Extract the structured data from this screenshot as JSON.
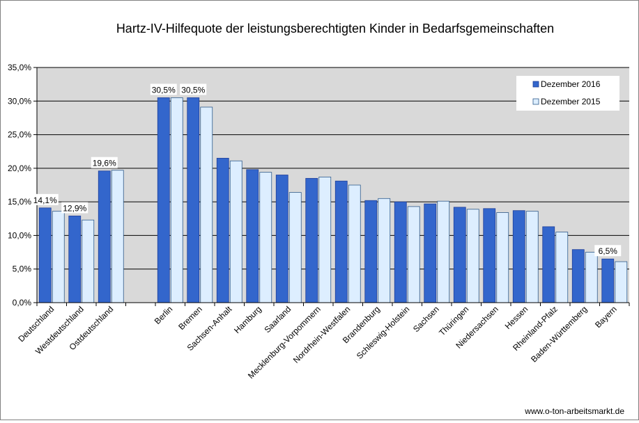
{
  "chart_data": {
    "type": "bar",
    "title": "Hartz-IV-Hilfequote der leistungsberechtigten Kinder in Bedarfsgemeinschaften",
    "xlabel": "",
    "ylabel": "",
    "ylim": [
      0,
      35
    ],
    "yticks": [
      "0,0%",
      "5,0%",
      "10,0%",
      "15,0%",
      "20,0%",
      "25,0%",
      "30,0%",
      "35,0%"
    ],
    "grid": true,
    "legend_position": "top-right",
    "categories": [
      "Deutschland",
      "Westdeutschland",
      "Ostdeutschland",
      "",
      "Berlin",
      "Bremen",
      "Sachsen-Anhalt",
      "Hamburg",
      "Saarland",
      "Mecklenburg-Vorpommern",
      "Nordrhein-Westfalen",
      "Brandenburg",
      "Schleswig-Holstein",
      "Sachsen",
      "Thüringen",
      "Niedersachsen",
      "Hessen",
      "Rheinland-Pfalz",
      "Baden-Württemberg",
      "Bayern"
    ],
    "series": [
      {
        "name": "Dezember 2016",
        "color": "#3366cc",
        "values": [
          14.1,
          12.9,
          19.6,
          null,
          30.5,
          30.5,
          21.5,
          19.8,
          19.0,
          18.5,
          18.1,
          15.2,
          15.0,
          14.7,
          14.2,
          14.0,
          13.7,
          11.3,
          7.9,
          6.5
        ]
      },
      {
        "name": "Dezember 2015",
        "color": "#ddeeff",
        "values": [
          13.6,
          12.3,
          19.7,
          null,
          30.5,
          29.1,
          21.1,
          19.4,
          16.4,
          18.7,
          17.5,
          15.5,
          14.3,
          15.1,
          13.9,
          13.4,
          13.6,
          10.5,
          7.5,
          6.1
        ]
      }
    ],
    "data_labels": [
      {
        "series": 0,
        "index": 0,
        "text": "14,1%"
      },
      {
        "series": 0,
        "index": 1,
        "text": "12,9%"
      },
      {
        "series": 0,
        "index": 2,
        "text": "19,6%"
      },
      {
        "series": 0,
        "index": 4,
        "text": "30,5%"
      },
      {
        "series": 0,
        "index": 5,
        "text": "30,5%"
      },
      {
        "series": 0,
        "index": 19,
        "text": "6,5%"
      }
    ]
  },
  "footer": {
    "source": "www.o-ton-arbeitsmarkt.de"
  }
}
